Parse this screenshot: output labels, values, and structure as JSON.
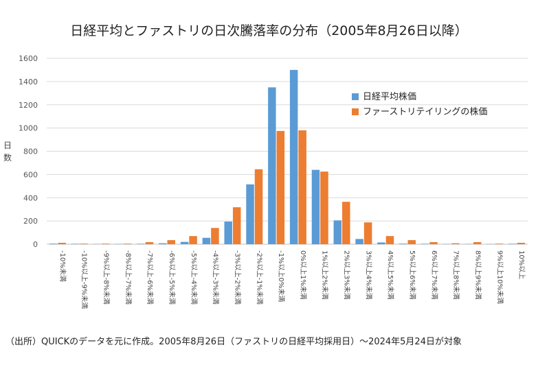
{
  "chart_data": {
    "type": "bar",
    "title": "日経平均とファストリの日次騰落率の分布（2005年8月26日以降）",
    "ylabel": "日数",
    "xlabel": "",
    "ylim": [
      0,
      1600
    ],
    "yticks": [
      0,
      200,
      400,
      600,
      800,
      1000,
      1200,
      1400,
      1600
    ],
    "grid": true,
    "legend_position": "top-right",
    "categories": [
      "-10%未満",
      "-10%以上-9%未満",
      "-9%以上-8%未満",
      "-8%以上-7%未満",
      "-7%以上-6%未満",
      "-6%以上-5%未満",
      "-5%以上-4%未満",
      "-4%以上-3%未満",
      "-3%以上-2%未満",
      "-2%以上-1%未満",
      "-1%以上0%未満",
      "0%以上1%未満",
      "1%以上2%未満",
      "2%以上3%未満",
      "3%以上4%未満",
      "4%以上5%未満",
      "5%以上6%未満",
      "6%以上7%未満",
      "7%以上8%未満",
      "8%以上9%未満",
      "9%以上10%未満",
      "10%以上"
    ],
    "series": [
      {
        "name": "日経平均株価",
        "color": "#5B9BD5",
        "values": [
          5,
          4,
          2,
          3,
          4,
          8,
          20,
          55,
          195,
          515,
          1350,
          1500,
          640,
          205,
          45,
          15,
          5,
          4,
          2,
          3,
          2,
          4
        ]
      },
      {
        "name": "ファーストリテイリングの株価",
        "color": "#ED7D31",
        "values": [
          12,
          5,
          5,
          5,
          18,
          35,
          70,
          140,
          318,
          645,
          975,
          980,
          625,
          365,
          188,
          70,
          35,
          18,
          8,
          18,
          5,
          12
        ]
      }
    ]
  },
  "source_note": "（出所）QUICKのデータを元に作成。2005年8月26日（ファストリの日経平均採用日）〜2024年5月24日が対象"
}
